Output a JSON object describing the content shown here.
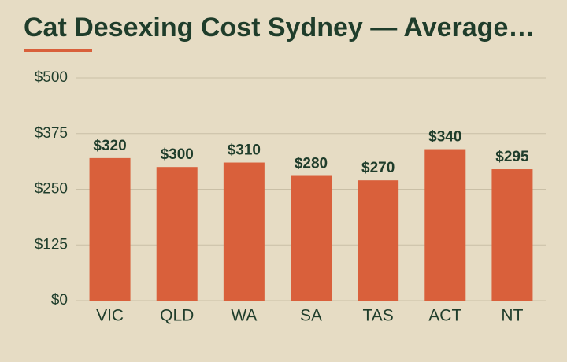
{
  "chart_data": {
    "type": "bar",
    "title": "Cat Desexing Cost Sydney — Average…",
    "categories": [
      "VIC",
      "QLD",
      "WA",
      "SA",
      "TAS",
      "ACT",
      "NT"
    ],
    "values": [
      320,
      300,
      310,
      280,
      270,
      340,
      295
    ],
    "value_labels": [
      "$320",
      "$300",
      "$310",
      "$280",
      "$270",
      "$340",
      "$295"
    ],
    "color": "#d9603b",
    "ylim": [
      0,
      500
    ],
    "yticks": [
      {
        "value": 0,
        "label": "$0"
      },
      {
        "value": 125,
        "label": "$125"
      },
      {
        "value": 250,
        "label": "$250"
      },
      {
        "value": 375,
        "label": "$375"
      },
      {
        "value": 500,
        "label": "$500"
      }
    ],
    "grid": true
  }
}
